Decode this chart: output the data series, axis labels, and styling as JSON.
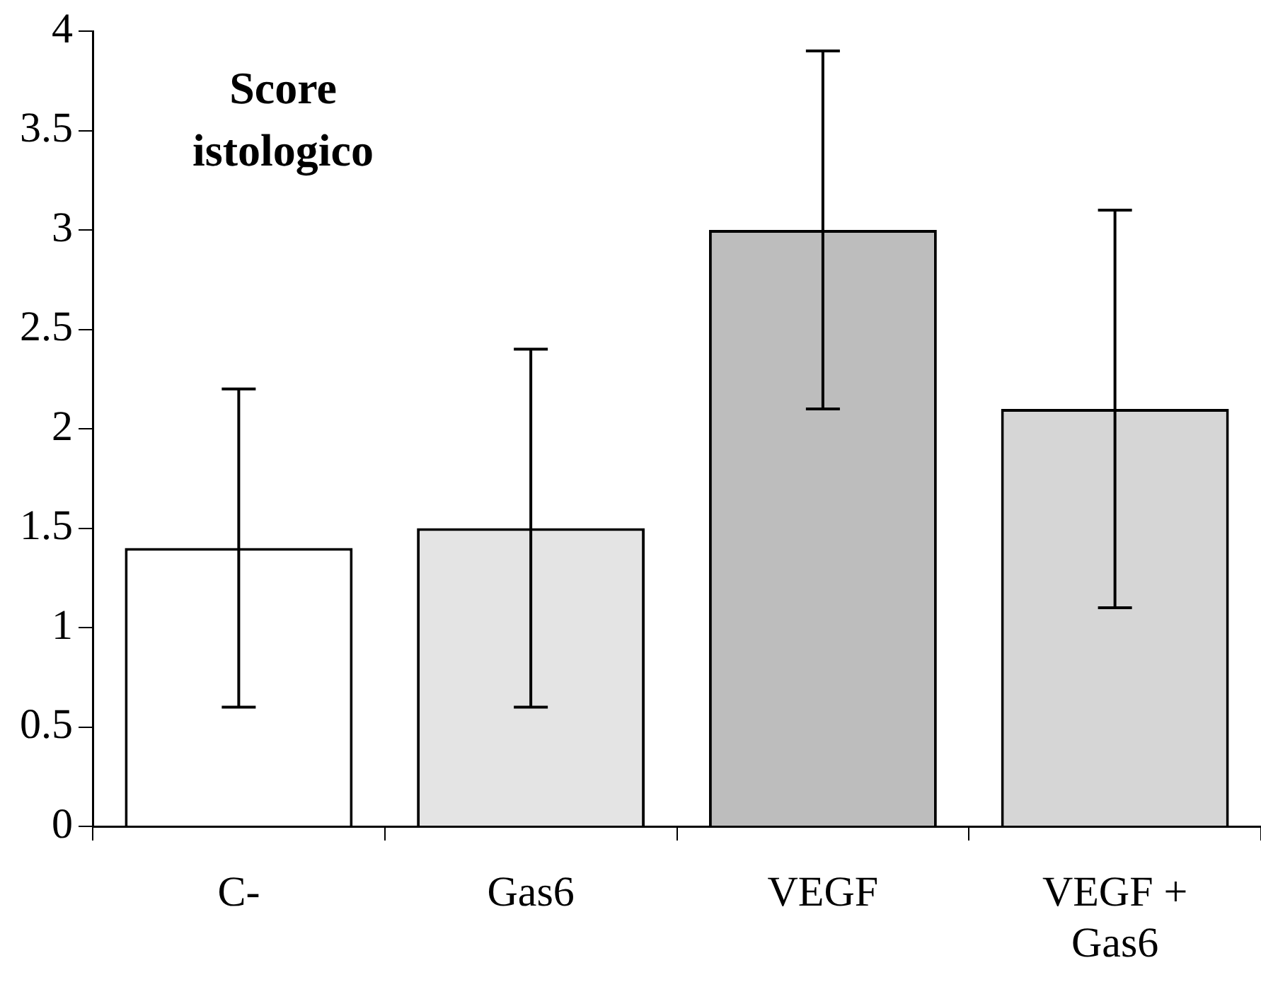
{
  "chart_data": {
    "type": "bar",
    "title": "Score istologico",
    "categories": [
      "C-",
      "Gas6",
      "VEGF",
      "VEGF + Gas6"
    ],
    "values": [
      1.4,
      1.5,
      3.0,
      2.1
    ],
    "colors": [
      "#ffffff",
      "#e4e4e4",
      "#bdbdbd",
      "#d6d6d6"
    ],
    "errors": [
      0.8,
      0.9,
      0.9,
      1.0
    ],
    "ylim": [
      0,
      4
    ],
    "yticks": [
      0,
      0.5,
      1,
      1.5,
      2,
      2.5,
      3,
      3.5,
      4
    ],
    "grid": false,
    "legend": false
  }
}
